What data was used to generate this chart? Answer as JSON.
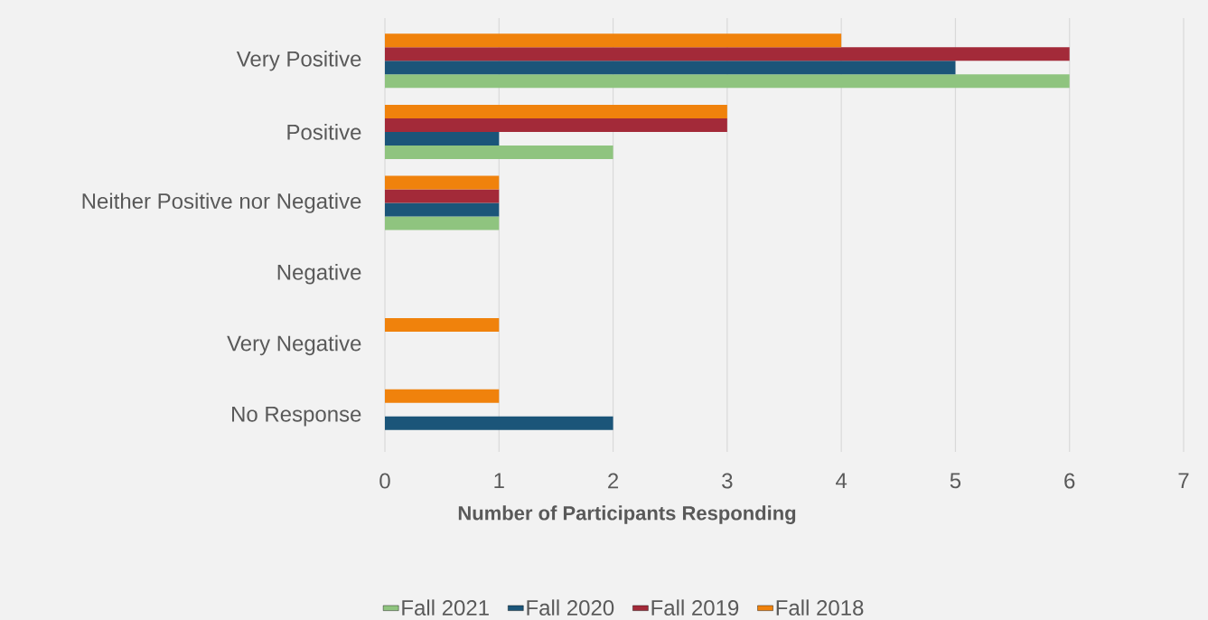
{
  "chart_data": {
    "type": "bar",
    "orientation": "horizontal",
    "categories": [
      "Very Positive",
      "Positive",
      "Neither Positive nor Negative",
      "Negative",
      "Very Negative",
      "No Response"
    ],
    "series": [
      {
        "name": "Fall 2021",
        "color": "#8fc47f",
        "values": [
          6,
          2,
          1,
          0,
          0,
          0
        ]
      },
      {
        "name": "Fall 2020",
        "color": "#1b5579",
        "values": [
          5,
          1,
          1,
          0,
          0,
          2
        ]
      },
      {
        "name": "Fall 2019",
        "color": "#a32a39",
        "values": [
          6,
          3,
          1,
          0,
          0,
          0
        ]
      },
      {
        "name": "Fall 2018",
        "color": "#f0820c",
        "values": [
          4,
          3,
          1,
          0,
          1,
          1
        ]
      }
    ],
    "xlim": [
      0,
      7
    ],
    "xticks": [
      0,
      1,
      2,
      3,
      4,
      5,
      6,
      7
    ],
    "xlabel": "Number of Participants Responding",
    "grid": "x",
    "legend": "bottom"
  }
}
